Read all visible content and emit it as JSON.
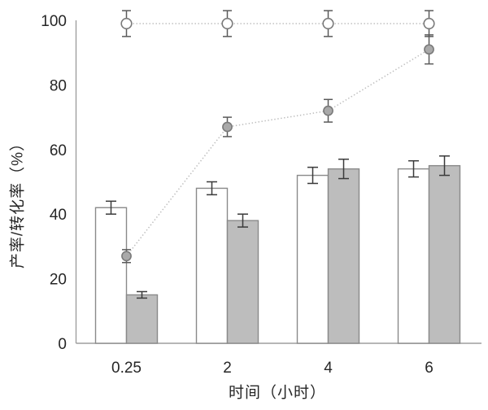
{
  "chart_data": {
    "type": "combo-bar-line",
    "title": "",
    "xlabel": "时间（小时）",
    "ylabel": "产率/转化率（%）",
    "categories": [
      "0.25",
      "2",
      "4",
      "6"
    ],
    "ylim": [
      0,
      100
    ],
    "yticks": [
      0,
      20,
      40,
      60,
      80,
      100
    ],
    "grid": false,
    "legend": "none",
    "series": [
      {
        "name": "white-bar",
        "type": "bar",
        "marker": "none",
        "values": [
          42,
          48,
          52,
          54
        ],
        "errors": [
          2,
          2,
          2.5,
          2.5
        ],
        "fill": "#ffffff",
        "stroke": "#8a8a8a"
      },
      {
        "name": "gray-bar",
        "type": "bar",
        "marker": "none",
        "values": [
          15,
          38,
          54,
          55
        ],
        "errors": [
          1,
          2,
          3,
          3
        ],
        "fill": "#bdbdbd",
        "stroke": "#8a8a8a"
      },
      {
        "name": "filled-circle-dotted-line",
        "type": "line",
        "marker": "filled-circle",
        "values": [
          27,
          67,
          72,
          91
        ],
        "errors": [
          2,
          3,
          3.5,
          4.5
        ],
        "fill": "#a9a9a9",
        "stroke": "#7a7a7a",
        "line_color": "#bcbcbc",
        "line_style": "dotted"
      },
      {
        "name": "open-circle-dotted-line",
        "type": "line",
        "marker": "open-circle",
        "values": [
          99,
          99,
          99,
          99
        ],
        "errors": [
          4,
          4,
          4,
          4
        ],
        "fill": "#ffffff",
        "stroke": "#7a7a7a",
        "line_color": "#bcbcbc",
        "line_style": "dotted"
      }
    ]
  },
  "colors": {
    "axis": "#9e9e9e",
    "bar_error": "#3a3a3a",
    "line_error": "#5a5a5a",
    "text": "#262626",
    "background": "#ffffff"
  }
}
